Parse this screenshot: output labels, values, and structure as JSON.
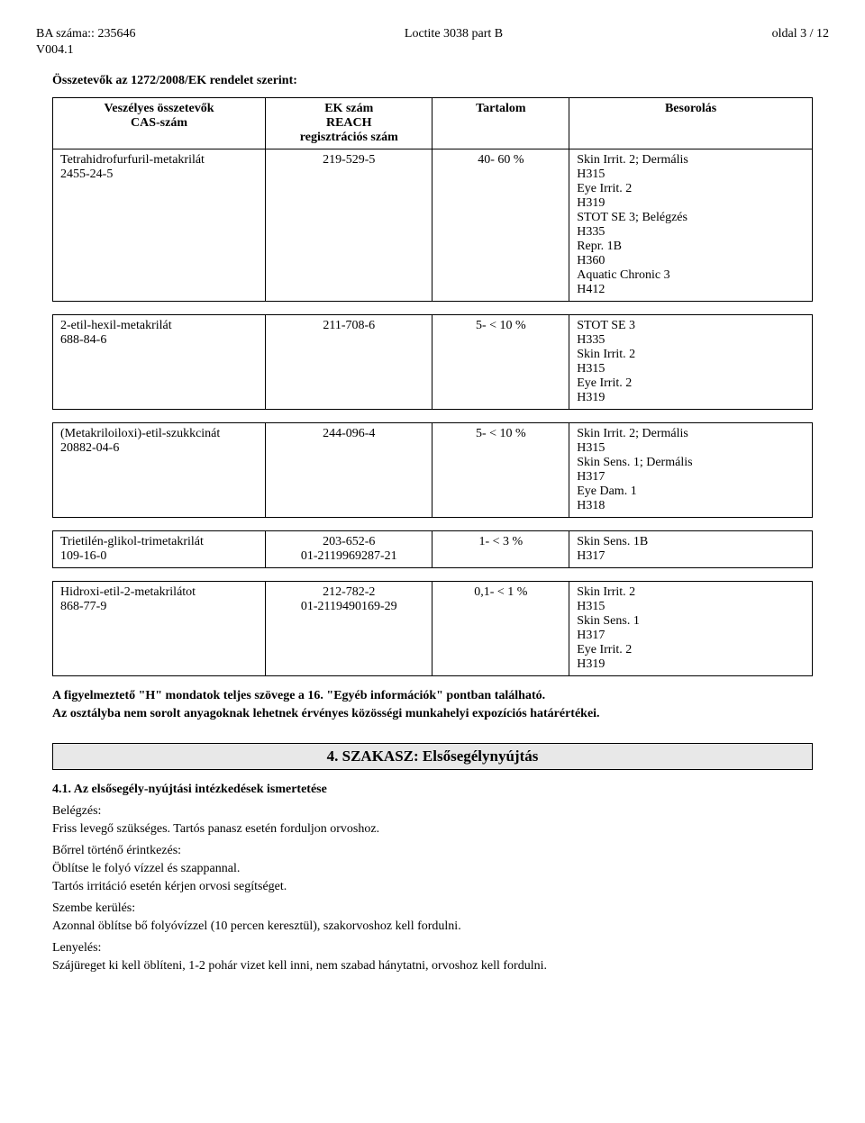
{
  "header": {
    "ba_label": "BA száma::",
    "ba_value": "235646",
    "version": "V004.1",
    "product": "Loctite 3038 part B",
    "page": "oldal 3 / 12"
  },
  "section_title": "Összetevők az 1272/2008/EK rendelet szerint:",
  "table_headers": {
    "name_l1": "Veszélyes összetevők",
    "name_l2": "CAS-szám",
    "ek_l1": "EK szám",
    "ek_l2": "REACH",
    "ek_l3": "regisztrációs szám",
    "tartalom": "Tartalom",
    "besorolas": "Besorolás"
  },
  "rows": [
    {
      "name_l1": "Tetrahidrofurfuril-metakrilát",
      "name_l2": "2455-24-5",
      "ek": "219-529-5",
      "tartalom": "40-  60 %",
      "besorolas": "Skin Irrit. 2; Dermális\nH315\nEye Irrit. 2\nH319\nSTOT SE 3; Belégzés\nH335\nRepr. 1B\nH360\nAquatic Chronic 3\nH412"
    },
    {
      "name_l1": "2-etil-hexil-metakrilát",
      "name_l2": "688-84-6",
      "ek": "211-708-6",
      "tartalom": "5- <  10 %",
      "besorolas": "STOT SE 3\nH335\nSkin Irrit. 2\nH315\nEye Irrit. 2\nH319"
    },
    {
      "name_l1": "(Metakriloiloxi)-etil-szukkcinát",
      "name_l2": "20882-04-6",
      "ek": "244-096-4",
      "tartalom": "5- <  10 %",
      "besorolas": "Skin Irrit. 2; Dermális\nH315\nSkin Sens. 1; Dermális\nH317\nEye Dam. 1\nH318"
    },
    {
      "name_l1": "Trietilén-glikol-trimetakrilát",
      "name_l2": "109-16-0",
      "ek": "203-652-6\n01-2119969287-21",
      "tartalom": "1- <   3 %",
      "besorolas": "Skin Sens. 1B\nH317"
    },
    {
      "name_l1": "Hidroxi-etil-2-metakrilátot",
      "name_l2": "868-77-9",
      "ek": "212-782-2\n01-2119490169-29",
      "tartalom": "0,1- <   1 %",
      "besorolas": "Skin Irrit. 2\nH315\nSkin Sens. 1\nH317\nEye Irrit. 2\nH319"
    }
  ],
  "note_l1": "A figyelmeztető \"H\" mondatok teljes szövege a 16. \"Egyéb információk\" pontban található.",
  "note_l2": "Az osztályba nem sorolt anyagoknak lehetnek érvényes közösségi munkahelyi expozíciós határértékei.",
  "szakasz4": {
    "title": "4. SZAKASZ: Elsősegélynyújtás",
    "s41": "4.1. Az elsősegély-nyújtási intézkedések ismertetése",
    "belegzes_t": "Belégzés:",
    "belegzes": "Friss levegő szükséges. Tartós panasz esetén forduljon orvoshoz.",
    "bor_t": "Bőrrel történő érintkezés:",
    "bor_l1": "Öblítse le folyó vízzel és szappannal.",
    "bor_l2": "Tartós irritáció  esetén kérjen orvosi segítséget.",
    "szem_t": "Szembe kerülés:",
    "szem": "Azonnal öblítse bő folyóvízzel (10 percen keresztül), szakorvoshoz kell fordulni.",
    "lenyeles_t": "Lenyelés:",
    "lenyeles": "Szájüreget ki kell öblíteni, 1-2 pohár vizet kell inni, nem szabad hánytatni, orvoshoz kell fordulni."
  }
}
